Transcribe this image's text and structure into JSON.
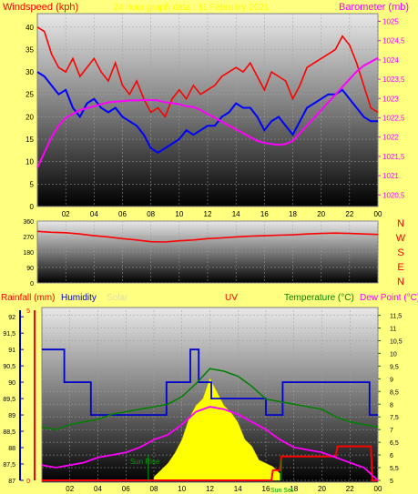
{
  "colors": {
    "background": "#ffff80",
    "windspeed": "#ff0000",
    "wind_avg": "#0000ff",
    "barometer": "#ff00ff",
    "direction": "#ff0000",
    "rainfall": "#ff0000",
    "humidity": "#0000cc",
    "solar": "#ffff00",
    "uv": "#ff00ff",
    "temperature": "#008000",
    "dewpoint": "#ff00ff",
    "sunrise": "#00a000"
  },
  "chart_data": [
    {
      "type": "line",
      "title": "24 hour graph data : 11 February 2021",
      "labels": {
        "left": "Windspeed (kph)",
        "right": "Barometer (mb)"
      },
      "x_ticks": [
        "02",
        "04",
        "06",
        "08",
        "10",
        "12",
        "14",
        "16",
        "18",
        "20",
        "22",
        "00"
      ],
      "y_left_ticks": [
        "0",
        "5",
        "10",
        "15",
        "20",
        "25",
        "30",
        "35",
        "40"
      ],
      "y_left_range": [
        0,
        43
      ],
      "y_right_ticks": [
        "1020,5",
        "1021",
        "1021,5",
        "1022",
        "1022,5",
        "1023",
        "1023,5",
        "1024",
        "1024,5",
        "1025"
      ],
      "y_right_range": [
        1020.2,
        1025.2
      ],
      "x_range": [
        0,
        24
      ],
      "series": [
        {
          "key": "gust",
          "color": "#ff0000",
          "x": [
            0,
            0.5,
            1,
            1.5,
            2,
            2.5,
            3,
            3.5,
            4,
            4.5,
            5,
            5.5,
            6,
            6.5,
            7,
            7.5,
            8,
            8.5,
            9,
            9.5,
            10,
            10.5,
            11,
            11.5,
            12,
            12.5,
            13,
            13.5,
            14,
            14.5,
            15,
            15.5,
            16,
            16.5,
            17,
            17.5,
            18,
            18.5,
            19,
            19.5,
            20,
            20.5,
            21,
            21.5,
            22,
            22.5,
            23,
            23.5,
            24
          ],
          "y": [
            40,
            39,
            34,
            31,
            30,
            33,
            29,
            31,
            33,
            30,
            28,
            32,
            27,
            25,
            28,
            24,
            21,
            22,
            20,
            24,
            26,
            24,
            27,
            25,
            26,
            27,
            29,
            30,
            31,
            30,
            32,
            29,
            26,
            30,
            29,
            28,
            24,
            27,
            31,
            32,
            33,
            34,
            35,
            38,
            36,
            32,
            27,
            22,
            21
          ]
        },
        {
          "key": "average",
          "color": "#0000ff",
          "x": [
            0,
            0.5,
            1,
            1.5,
            2,
            2.5,
            3,
            3.5,
            4,
            4.5,
            5,
            5.5,
            6,
            6.5,
            7,
            7.5,
            8,
            8.5,
            9,
            9.5,
            10,
            10.5,
            11,
            11.5,
            12,
            12.5,
            13,
            13.5,
            14,
            14.5,
            15,
            15.5,
            16,
            16.5,
            17,
            17.5,
            18,
            18.5,
            19,
            19.5,
            20,
            20.5,
            21,
            21.5,
            22,
            22.5,
            23,
            23.5,
            24
          ],
          "y": [
            30,
            29,
            27,
            25,
            26,
            22,
            20,
            23,
            24,
            22,
            21,
            22,
            20,
            19,
            18,
            16,
            13,
            12,
            13,
            14,
            15,
            17,
            16,
            17,
            18,
            18,
            20,
            21,
            23,
            22,
            22,
            20,
            17,
            19,
            20,
            18,
            16,
            19,
            22,
            23,
            24,
            25,
            25,
            26,
            24,
            22,
            20,
            19,
            19
          ]
        },
        {
          "key": "barometer",
          "color": "#ff00ff",
          "axis": "right",
          "x": [
            0,
            0.5,
            1,
            1.5,
            2,
            2.5,
            3,
            3.5,
            4,
            4.5,
            5,
            5.5,
            6,
            6.5,
            7,
            7.5,
            8,
            8.5,
            9,
            9.5,
            10,
            10.5,
            11,
            11.5,
            12,
            12.5,
            13,
            13.5,
            14,
            14.5,
            15,
            15.5,
            16,
            16.5,
            17,
            17.5,
            18,
            18.5,
            19,
            19.5,
            20,
            20.5,
            21,
            21.5,
            22,
            22.5,
            23,
            23.5,
            24
          ],
          "y": [
            1021.2,
            1021.6,
            1022.0,
            1022.3,
            1022.5,
            1022.6,
            1022.7,
            1022.75,
            1022.8,
            1022.85,
            1022.9,
            1022.92,
            1022.93,
            1022.95,
            1022.95,
            1022.96,
            1022.96,
            1022.95,
            1022.9,
            1022.88,
            1022.85,
            1022.8,
            1022.78,
            1022.7,
            1022.6,
            1022.5,
            1022.4,
            1022.3,
            1022.2,
            1022.1,
            1022.0,
            1021.9,
            1021.85,
            1021.82,
            1021.8,
            1021.82,
            1021.9,
            1022.1,
            1022.3,
            1022.5,
            1022.7,
            1022.9,
            1023.1,
            1023.3,
            1023.5,
            1023.7,
            1023.85,
            1023.95,
            1024.05
          ]
        }
      ]
    },
    {
      "type": "line",
      "labels": {
        "right": [
          "N",
          "W",
          "S",
          "E",
          "N"
        ]
      },
      "x_ticks": [
        "02",
        "04",
        "06",
        "08",
        "10",
        "12",
        "14",
        "16",
        "18",
        "20",
        "22",
        "00"
      ],
      "y_ticks": [
        "0",
        "90",
        "180",
        "270",
        "360"
      ],
      "y_range": [
        0,
        360
      ],
      "x_range": [
        0,
        24
      ],
      "series": [
        {
          "key": "direction",
          "color": "#ff0000",
          "x": [
            0,
            1,
            2,
            3,
            4,
            5,
            6,
            7,
            8,
            9,
            10,
            11,
            12,
            13,
            14,
            15,
            16,
            17,
            18,
            19,
            20,
            21,
            22,
            23,
            24
          ],
          "y": [
            300,
            295,
            292,
            285,
            275,
            268,
            258,
            250,
            240,
            238,
            245,
            250,
            258,
            262,
            268,
            272,
            275,
            278,
            280,
            285,
            288,
            290,
            288,
            285,
            282
          ]
        }
      ]
    },
    {
      "type": "line",
      "labels": {
        "rainfall": "Rainfall (mm)",
        "humidity": "Humidity",
        "solar": "Solar",
        "uv": "UV",
        "temperature": "Temperature (°C)",
        "dewpoint": "Dew Point (°C)",
        "sunrise": "Sun Rise",
        "sunset": "Sun Set"
      },
      "x_ticks": [
        "02",
        "04",
        "06",
        "08",
        "10",
        "12",
        "14",
        "16",
        "18",
        "20",
        "22",
        "00"
      ],
      "rain_ticks": [
        "0",
        "5"
      ],
      "humidity_ticks": [
        "87",
        "87,5",
        "88",
        "88,5",
        "89",
        "89,5",
        "90",
        "90,5",
        "91",
        "91,5",
        "92"
      ],
      "humidity_range": [
        87,
        92.2
      ],
      "temp_ticks": [
        "5",
        "5,5",
        "6",
        "6,5",
        "7",
        "7,5",
        "8",
        "8,5",
        "9",
        "9,5",
        "10",
        "10,5",
        "11",
        "11,5"
      ],
      "temp_range": [
        5,
        11.7
      ],
      "x_range": [
        0,
        24
      ],
      "sunrise_x": 7.6,
      "sunset_x": 17.1,
      "series": [
        {
          "key": "humidity",
          "color": "#0000cc",
          "x": [
            0,
            1.6,
            1.6,
            3.5,
            3.5,
            6.5,
            6.5,
            8.9,
            8.9,
            10.6,
            10.6,
            11.2,
            11.2,
            12.1,
            12.1,
            16.0,
            16.0,
            17.2,
            17.2,
            23.4,
            23.4,
            24
          ],
          "y": [
            91,
            91,
            90,
            90,
            89,
            89,
            89,
            89,
            90,
            90,
            91,
            91,
            90,
            90,
            89.5,
            89.5,
            89,
            89,
            90,
            90,
            89,
            89
          ]
        },
        {
          "key": "temperature",
          "color": "#008000",
          "x": [
            0,
            1,
            2,
            3,
            4,
            5,
            6,
            7,
            8,
            9,
            10,
            11,
            12,
            13,
            14,
            15,
            16,
            17,
            18,
            19,
            20,
            21,
            22,
            23,
            24
          ],
          "y": [
            7.1,
            7.0,
            7.2,
            7.3,
            7.4,
            7.6,
            7.7,
            7.8,
            7.9,
            8.0,
            8.3,
            8.8,
            9.4,
            9.3,
            9.1,
            8.7,
            8.2,
            8.1,
            8.0,
            7.9,
            7.8,
            7.5,
            7.3,
            7.2,
            7.1
          ]
        },
        {
          "key": "dewpoint",
          "color": "#ff00ff",
          "x": [
            0,
            1,
            2,
            3,
            4,
            5,
            6,
            7,
            8,
            9,
            10,
            11,
            12,
            13,
            14,
            15,
            16,
            17,
            18,
            19,
            20,
            21,
            22,
            23,
            24
          ],
          "y": [
            5.6,
            5.5,
            5.6,
            5.7,
            5.9,
            6.0,
            6.1,
            6.3,
            6.6,
            6.8,
            7.2,
            7.7,
            7.9,
            7.8,
            7.6,
            7.3,
            7.0,
            6.6,
            6.3,
            6.2,
            6.1,
            5.9,
            5.7,
            5.5,
            5.0
          ]
        },
        {
          "key": "rainfall",
          "color": "#ff0000",
          "x": [
            0,
            16.4,
            16.5,
            17.0,
            17.1,
            21.0,
            21.1,
            23.5,
            23.6,
            24
          ],
          "y": [
            0,
            0,
            0.3,
            0.3,
            0.7,
            0.7,
            1.0,
            1.0,
            0,
            0
          ]
        },
        {
          "key": "solar",
          "color": "#ffff00",
          "x": [
            8,
            8.5,
            9,
            9.5,
            10,
            10.5,
            11,
            11.5,
            12,
            12.5,
            13,
            13.5,
            14,
            14.5,
            15,
            15.5,
            16,
            16.5,
            17
          ],
          "y": [
            0.1,
            0.3,
            0.5,
            0.8,
            1.2,
            1.8,
            2.2,
            2.4,
            3.0,
            2.6,
            2.2,
            2.0,
            1.7,
            1.2,
            1.0,
            0.6,
            0.5,
            0.4,
            0.2
          ]
        }
      ]
    }
  ]
}
